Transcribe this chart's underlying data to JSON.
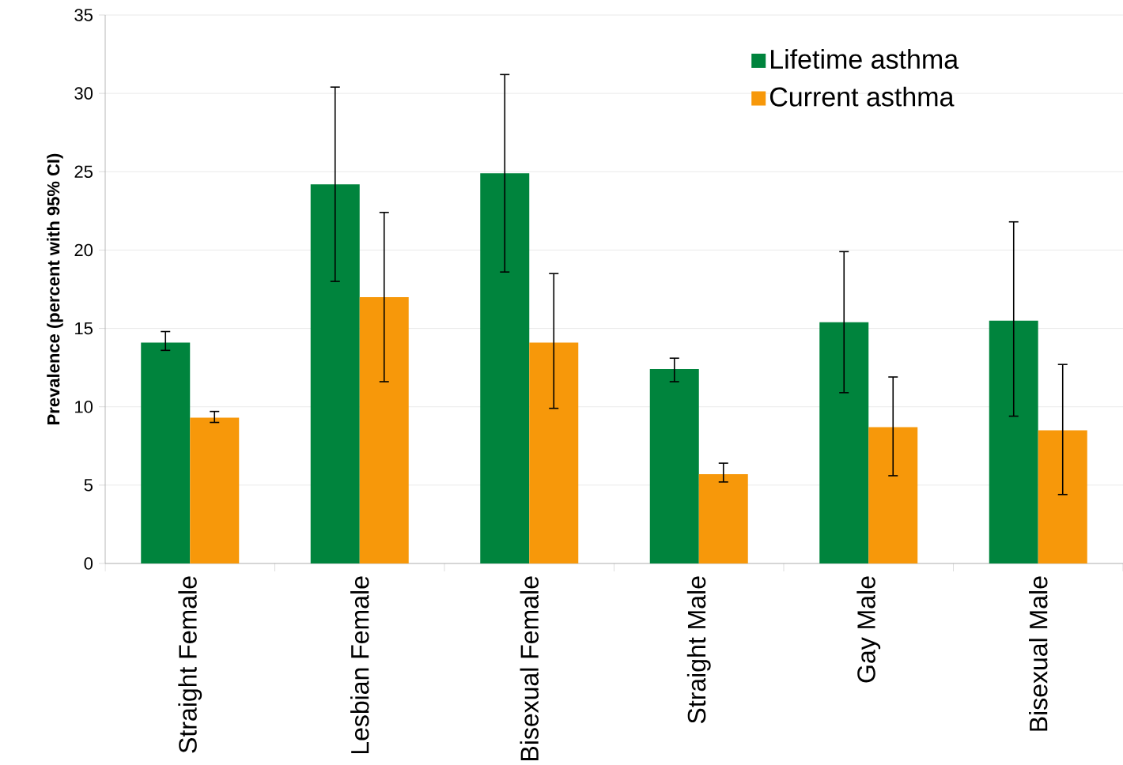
{
  "chart_data": {
    "type": "bar",
    "ylabel": "Prevalence (percent with 95% CI)",
    "categories": [
      "Straight Female",
      "Lesbian Female",
      "Bisexual Female",
      "Straight Male",
      "Gay Male",
      "Bisexual Male"
    ],
    "series": [
      {
        "name": "Lifetime asthma",
        "color": "#00843d",
        "values": [
          14.1,
          24.2,
          24.9,
          12.4,
          15.4,
          15.5
        ],
        "errors": [
          [
            13.6,
            14.8
          ],
          [
            18.0,
            30.4
          ],
          [
            18.6,
            31.2
          ],
          [
            11.6,
            13.1
          ],
          [
            10.9,
            19.9
          ],
          [
            9.4,
            21.8
          ]
        ]
      },
      {
        "name": "Current asthma",
        "color": "#f7980a",
        "values": [
          9.3,
          17.0,
          14.1,
          5.7,
          8.7,
          8.5
        ],
        "errors": [
          [
            9.0,
            9.7
          ],
          [
            11.6,
            22.4
          ],
          [
            9.9,
            18.5
          ],
          [
            5.2,
            6.4
          ],
          [
            5.6,
            11.9
          ],
          [
            4.4,
            12.7
          ]
        ]
      }
    ],
    "ylim": [
      0,
      35
    ],
    "yticks": [
      0,
      5,
      10,
      15,
      20,
      25,
      30,
      35
    ],
    "grid": "y",
    "legend": "top right"
  }
}
